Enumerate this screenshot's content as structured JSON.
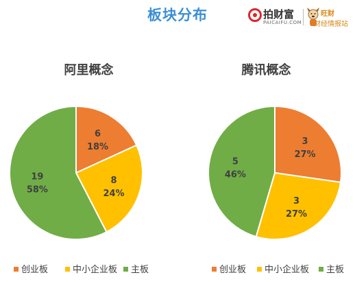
{
  "page": {
    "title": "板块分布",
    "brand": {
      "name": "拍财富",
      "domain": "PAICAIFU.COM",
      "partner_top": "旺财",
      "partner_sub": "财经情报站"
    }
  },
  "colors": {
    "创业板": "#ed7d31",
    "中小企业板": "#ffc000",
    "主板": "#70ad47"
  },
  "chart_data": [
    {
      "type": "pie",
      "title": "阿里概念",
      "categories": [
        "创业板",
        "中小企业板",
        "主板"
      ],
      "values": [
        6,
        8,
        19
      ],
      "percent_labels": [
        "18%",
        "24%",
        "58%"
      ],
      "legend": "bottom"
    },
    {
      "type": "pie",
      "title": "腾讯概念",
      "categories": [
        "创业板",
        "中小企业板",
        "主板"
      ],
      "values": [
        3,
        3,
        5
      ],
      "percent_labels": [
        "27%",
        "27%",
        "46%"
      ],
      "legend": "bottom"
    }
  ]
}
